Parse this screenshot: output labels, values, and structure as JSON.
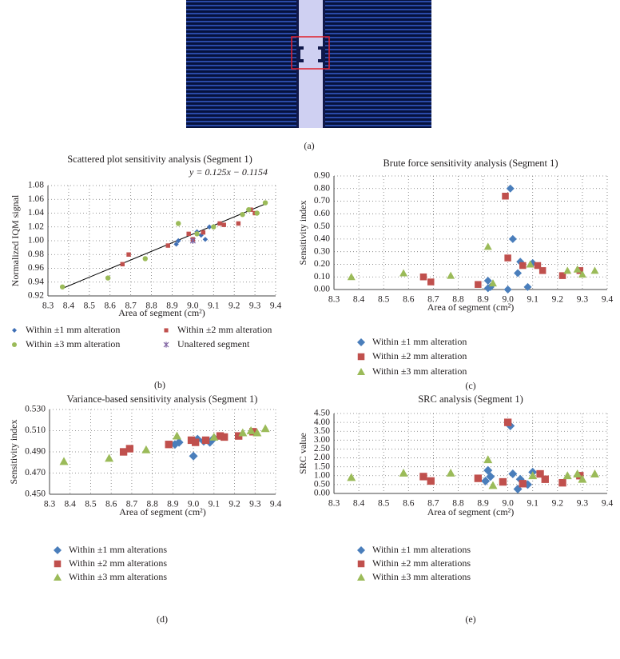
{
  "image_panel": {
    "label": "(a)"
  },
  "chart_data": [
    {
      "type": "scatter",
      "title": "Scattered plot sensitivity analysis (Segment 1)",
      "panel_label": "(b)",
      "x_label": "Area of segment (cm²)",
      "y_label": "Normalized IQM signal",
      "xlim": [
        8.3,
        9.4
      ],
      "xticks": [
        8.3,
        8.4,
        8.5,
        8.6,
        8.7,
        8.8,
        8.9,
        {
          "value": 9,
          "label": "9.0"
        },
        9.1,
        9.2,
        9.3,
        9.4
      ],
      "ylim": [
        0.92,
        1.08
      ],
      "yticks": [
        0.92,
        0.94,
        0.96,
        0.98,
        {
          "value": 1,
          "label": "1.00"
        },
        1.02,
        1.04,
        1.06,
        1.08
      ],
      "grid": true,
      "legend": "bottom",
      "trendline": {
        "label": "y = 0.125x − 0.1154",
        "slope": 0.125,
        "intercept": -0.1154,
        "x": [
          8.37,
          9.35
        ],
        "color": "#000000"
      },
      "series": [
        {
          "name": "Within ±1 mm alteration",
          "color": "#3f6fb5",
          "marker": "diamond",
          "x": [
            8.92,
            8.93,
            9.0,
            9.02,
            9.04,
            9.06,
            9.08
          ],
          "values": [
            0.995,
            1.0,
            1.0,
            1.013,
            1.008,
            1.002,
            1.02
          ]
        },
        {
          "name": "Within ±2 mm alteration",
          "color": "#c0504d",
          "marker": "square",
          "x": [
            8.66,
            8.69,
            8.88,
            8.98,
            9.0,
            9.05,
            9.13,
            9.15,
            9.22,
            9.28,
            9.3
          ],
          "values": [
            0.966,
            0.98,
            0.993,
            1.01,
            1.002,
            1.012,
            1.025,
            1.023,
            1.025,
            1.045,
            1.04
          ]
        },
        {
          "name": "Within ±3 mm alteration",
          "color": "#9bbb59",
          "marker": "circle",
          "x": [
            8.37,
            8.59,
            8.77,
            8.93,
            9.02,
            9.1,
            9.24,
            9.27,
            9.31,
            9.35
          ],
          "values": [
            0.933,
            0.946,
            0.974,
            1.025,
            1.01,
            1.02,
            1.038,
            1.045,
            1.04,
            1.055
          ]
        },
        {
          "name": "Unaltered segment",
          "color": "#8064a2",
          "marker": "star",
          "x": [
            9.0
          ],
          "values": [
            1.0
          ]
        }
      ]
    },
    {
      "type": "scatter",
      "title": "Brute force sensitivity analysis (Segment 1)",
      "panel_label": "(c)",
      "x_label": "Area of segment (cm²)",
      "y_label": "Sensitivity index",
      "xlim": [
        8.3,
        9.4
      ],
      "xticks": [
        8.3,
        8.4,
        8.5,
        8.6,
        8.7,
        8.8,
        8.9,
        {
          "value": 9,
          "label": "9.0"
        },
        9.1,
        9.2,
        9.3,
        9.4
      ],
      "ylim": [
        0,
        0.9
      ],
      "yticks": [
        {
          "value": 0,
          "label": "0.00"
        },
        {
          "value": 0.1,
          "label": "0.10"
        },
        {
          "value": 0.2,
          "label": "0.20"
        },
        {
          "value": 0.3,
          "label": "0.30"
        },
        {
          "value": 0.4,
          "label": "0.40"
        },
        {
          "value": 0.5,
          "label": "0.50"
        },
        {
          "value": 0.6,
          "label": "0.60"
        },
        {
          "value": 0.7,
          "label": "0.70"
        },
        {
          "value": 0.8,
          "label": "0.80"
        },
        {
          "value": 0.9,
          "label": "0.90"
        }
      ],
      "grid": true,
      "legend": "bottom",
      "series": [
        {
          "name": "Within ±1 mm alteration",
          "color": "#4a7ebb",
          "marker": "diamond",
          "x": [
            8.92,
            8.92,
            8.93,
            9.0,
            9.01,
            9.02,
            9.04,
            9.05,
            9.08,
            9.1
          ],
          "values": [
            0.07,
            0.01,
            0.02,
            0.0,
            0.8,
            0.4,
            0.13,
            0.22,
            0.02,
            0.21
          ]
        },
        {
          "name": "Within ±2 mm alteration",
          "color": "#c0504d",
          "marker": "square",
          "x": [
            8.66,
            8.69,
            8.88,
            8.99,
            9.0,
            9.06,
            9.12,
            9.14,
            9.22,
            9.29
          ],
          "values": [
            0.1,
            0.06,
            0.04,
            0.74,
            0.25,
            0.19,
            0.19,
            0.15,
            0.11,
            0.15
          ]
        },
        {
          "name": "Within ±3 mm alteration",
          "color": "#9bbb59",
          "marker": "triangle",
          "x": [
            8.37,
            8.58,
            8.77,
            8.92,
            8.94,
            9.09,
            9.24,
            9.28,
            9.3,
            9.35
          ],
          "values": [
            0.1,
            0.13,
            0.11,
            0.34,
            0.05,
            0.2,
            0.15,
            0.16,
            0.12,
            0.15
          ]
        }
      ]
    },
    {
      "type": "scatter",
      "title": "Variance-based sensitivity analysis (Segment 1)",
      "panel_label": "(d)",
      "x_label": "Area of segment (cm²)",
      "y_label": "Sensitivity index",
      "xlim": [
        8.3,
        9.4
      ],
      "xticks": [
        8.3,
        8.4,
        8.5,
        8.6,
        8.7,
        8.8,
        8.9,
        {
          "value": 9,
          "label": "9.0"
        },
        9.1,
        9.2,
        9.3,
        9.4
      ],
      "ylim": [
        0.45,
        0.53
      ],
      "yticks": [
        {
          "value": 0.45,
          "label": "0.450"
        },
        {
          "value": 0.47,
          "label": "0.470"
        },
        {
          "value": 0.49,
          "label": "0.490"
        },
        {
          "value": 0.51,
          "label": "0.510"
        },
        {
          "value": 0.53,
          "label": "0.530"
        }
      ],
      "grid": true,
      "legend": "bottom",
      "series": [
        {
          "name": "Within ±1 mm alterations",
          "color": "#4a7ebb",
          "marker": "diamond",
          "x": [
            8.91,
            8.93,
            9.0,
            9.02,
            9.05,
            9.08,
            9.1
          ],
          "values": [
            0.497,
            0.499,
            0.486,
            0.502,
            0.5,
            0.499,
            0.503
          ]
        },
        {
          "name": "Within ±2 mm alterations",
          "color": "#c0504d",
          "marker": "square",
          "x": [
            8.66,
            8.69,
            8.88,
            8.99,
            9.01,
            9.06,
            9.13,
            9.15,
            9.22,
            9.29
          ],
          "values": [
            0.49,
            0.493,
            0.497,
            0.501,
            0.499,
            0.501,
            0.505,
            0.504,
            0.505,
            0.509
          ]
        },
        {
          "name": "Within ±3 mm alterations",
          "color": "#9bbb59",
          "marker": "triangle",
          "x": [
            8.37,
            8.59,
            8.77,
            8.92,
            9.1,
            9.24,
            9.28,
            9.31,
            9.35
          ],
          "values": [
            0.481,
            0.484,
            0.492,
            0.505,
            0.504,
            0.508,
            0.51,
            0.508,
            0.512
          ]
        }
      ]
    },
    {
      "type": "scatter",
      "title": "SRC analysis (Segment 1)",
      "panel_label": "(e)",
      "x_label": "Area of segment (cm²)",
      "y_label": "SRC value",
      "xlim": [
        8.3,
        9.4
      ],
      "xticks": [
        8.3,
        8.4,
        8.5,
        8.6,
        8.7,
        8.8,
        8.9,
        {
          "value": 9,
          "label": "9.0"
        },
        9.1,
        9.2,
        9.3,
        9.4
      ],
      "ylim": [
        0,
        4.5
      ],
      "yticks": [
        {
          "value": 0,
          "label": "0.00"
        },
        {
          "value": 0.5,
          "label": "0.50"
        },
        {
          "value": 1,
          "label": "1.00"
        },
        {
          "value": 1.5,
          "label": "1.50"
        },
        {
          "value": 2,
          "label": "2.00"
        },
        {
          "value": 2.5,
          "label": "2.50"
        },
        {
          "value": 3,
          "label": "3.00"
        },
        {
          "value": 3.5,
          "label": "3.50"
        },
        {
          "value": 4,
          "label": "4.00"
        },
        {
          "value": 4.5,
          "label": "4.50"
        }
      ],
      "grid": true,
      "legend": "bottom",
      "series": [
        {
          "name": "Within ±1 mm alterations",
          "color": "#4a7ebb",
          "marker": "diamond",
          "x": [
            8.91,
            8.92,
            8.93,
            9.01,
            9.02,
            9.04,
            9.05,
            9.08,
            9.1
          ],
          "values": [
            0.7,
            1.3,
            0.95,
            3.8,
            1.1,
            0.25,
            0.8,
            0.5,
            1.2
          ]
        },
        {
          "name": "Within ±2 mm alterations",
          "color": "#c0504d",
          "marker": "square",
          "x": [
            8.66,
            8.69,
            8.88,
            8.98,
            9.0,
            9.06,
            9.13,
            9.15,
            9.22,
            9.29
          ],
          "values": [
            0.95,
            0.7,
            0.85,
            0.65,
            4.0,
            0.55,
            1.1,
            0.8,
            0.6,
            1.0
          ]
        },
        {
          "name": "Within ±3 mm alterations",
          "color": "#9bbb59",
          "marker": "triangle",
          "x": [
            8.37,
            8.58,
            8.77,
            8.92,
            8.94,
            9.1,
            9.24,
            9.28,
            9.3,
            9.35
          ],
          "values": [
            0.9,
            1.15,
            1.15,
            1.9,
            0.45,
            1.0,
            1.0,
            1.1,
            0.8,
            1.1
          ]
        }
      ]
    }
  ]
}
